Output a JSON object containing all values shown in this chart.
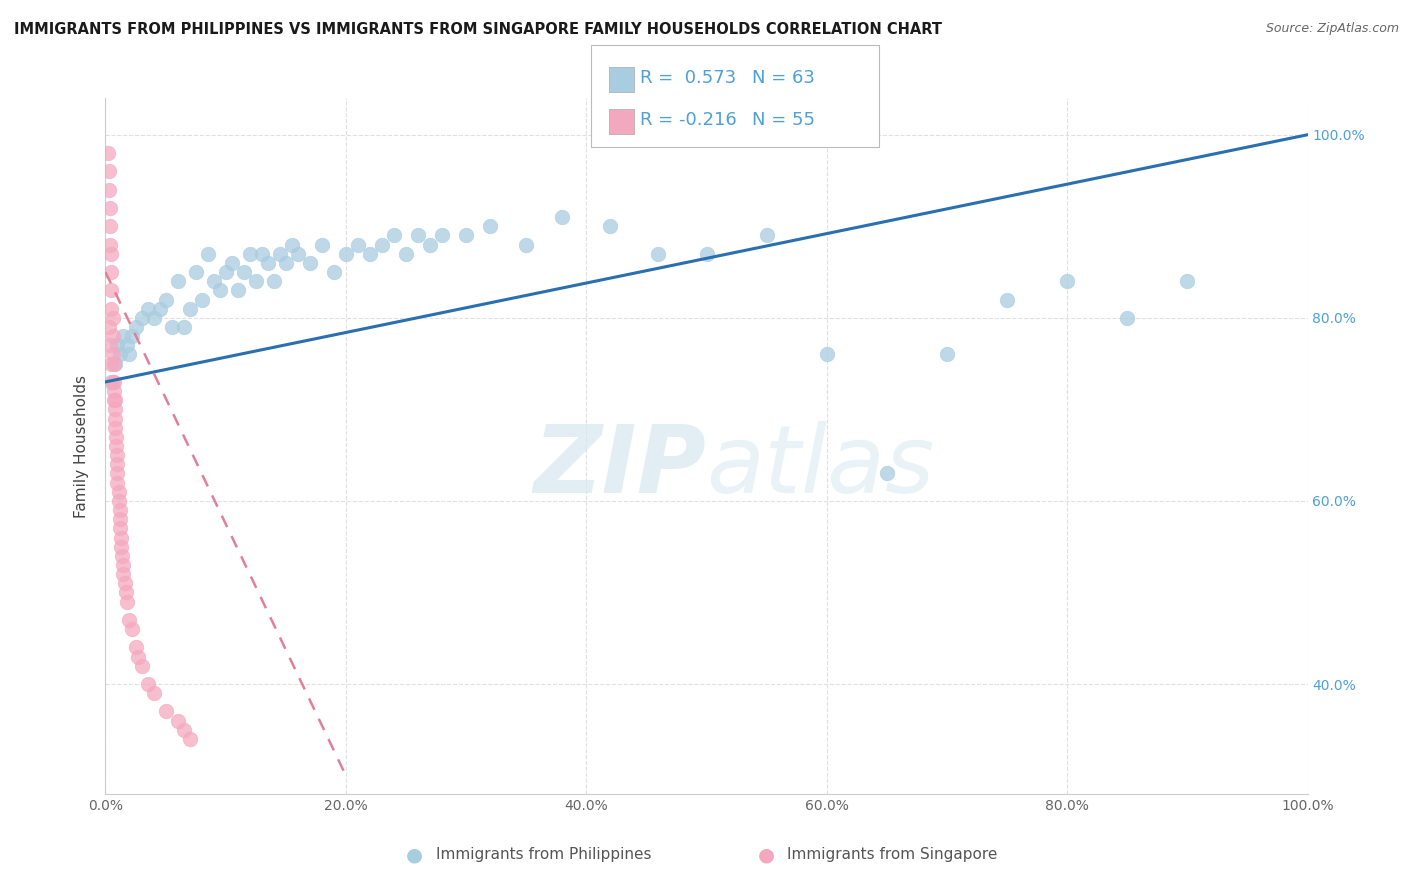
{
  "title": "IMMIGRANTS FROM PHILIPPINES VS IMMIGRANTS FROM SINGAPORE FAMILY HOUSEHOLDS CORRELATION CHART",
  "source": "Source: ZipAtlas.com",
  "ylabel": "Family Households",
  "R_philippines": 0.573,
  "N_philippines": 63,
  "R_singapore": -0.216,
  "N_singapore": 55,
  "blue_color": "#a8cce0",
  "pink_color": "#f4a8bf",
  "line_blue_color": "#2a6faf",
  "line_pink_color": "#e08098",
  "legend_label1": "Immigrants from Philippines",
  "legend_label2": "Immigrants from Singapore",
  "blue_scatter_x": [
    0.005,
    0.008,
    0.01,
    0.012,
    0.015,
    0.018,
    0.02,
    0.022,
    0.025,
    0.03,
    0.035,
    0.04,
    0.045,
    0.05,
    0.055,
    0.06,
    0.065,
    0.07,
    0.075,
    0.08,
    0.085,
    0.09,
    0.095,
    0.1,
    0.105,
    0.11,
    0.115,
    0.12,
    0.125,
    0.13,
    0.135,
    0.14,
    0.145,
    0.15,
    0.155,
    0.16,
    0.17,
    0.18,
    0.19,
    0.2,
    0.21,
    0.22,
    0.23,
    0.24,
    0.25,
    0.26,
    0.27,
    0.28,
    0.3,
    0.32,
    0.35,
    0.38,
    0.42,
    0.46,
    0.5,
    0.55,
    0.6,
    0.65,
    0.7,
    0.75,
    0.8,
    0.85,
    0.9
  ],
  "blue_scatter_y": [
    0.73,
    0.75,
    0.77,
    0.76,
    0.78,
    0.77,
    0.76,
    0.78,
    0.79,
    0.8,
    0.81,
    0.8,
    0.81,
    0.82,
    0.79,
    0.84,
    0.79,
    0.81,
    0.85,
    0.82,
    0.87,
    0.84,
    0.83,
    0.85,
    0.86,
    0.83,
    0.85,
    0.87,
    0.84,
    0.87,
    0.86,
    0.84,
    0.87,
    0.86,
    0.88,
    0.87,
    0.86,
    0.88,
    0.85,
    0.87,
    0.88,
    0.87,
    0.88,
    0.89,
    0.87,
    0.89,
    0.88,
    0.89,
    0.89,
    0.9,
    0.88,
    0.91,
    0.9,
    0.87,
    0.87,
    0.89,
    0.76,
    0.63,
    0.76,
    0.82,
    0.84,
    0.8,
    0.84
  ],
  "pink_scatter_x": [
    0.002,
    0.003,
    0.003,
    0.004,
    0.004,
    0.004,
    0.005,
    0.005,
    0.005,
    0.005,
    0.006,
    0.006,
    0.006,
    0.007,
    0.007,
    0.007,
    0.008,
    0.008,
    0.008,
    0.008,
    0.009,
    0.009,
    0.01,
    0.01,
    0.01,
    0.01,
    0.011,
    0.011,
    0.012,
    0.012,
    0.012,
    0.013,
    0.013,
    0.014,
    0.015,
    0.015,
    0.016,
    0.017,
    0.018,
    0.02,
    0.022,
    0.025,
    0.027,
    0.03,
    0.035,
    0.04,
    0.05,
    0.06,
    0.065,
    0.07,
    0.003,
    0.004,
    0.005,
    0.006,
    0.007
  ],
  "pink_scatter_y": [
    0.98,
    0.96,
    0.94,
    0.92,
    0.9,
    0.88,
    0.87,
    0.85,
    0.83,
    0.81,
    0.8,
    0.78,
    0.76,
    0.75,
    0.73,
    0.72,
    0.71,
    0.7,
    0.69,
    0.68,
    0.67,
    0.66,
    0.65,
    0.64,
    0.63,
    0.62,
    0.61,
    0.6,
    0.59,
    0.58,
    0.57,
    0.56,
    0.55,
    0.54,
    0.53,
    0.52,
    0.51,
    0.5,
    0.49,
    0.47,
    0.46,
    0.44,
    0.43,
    0.42,
    0.4,
    0.39,
    0.37,
    0.36,
    0.35,
    0.34,
    0.79,
    0.77,
    0.75,
    0.73,
    0.71
  ]
}
